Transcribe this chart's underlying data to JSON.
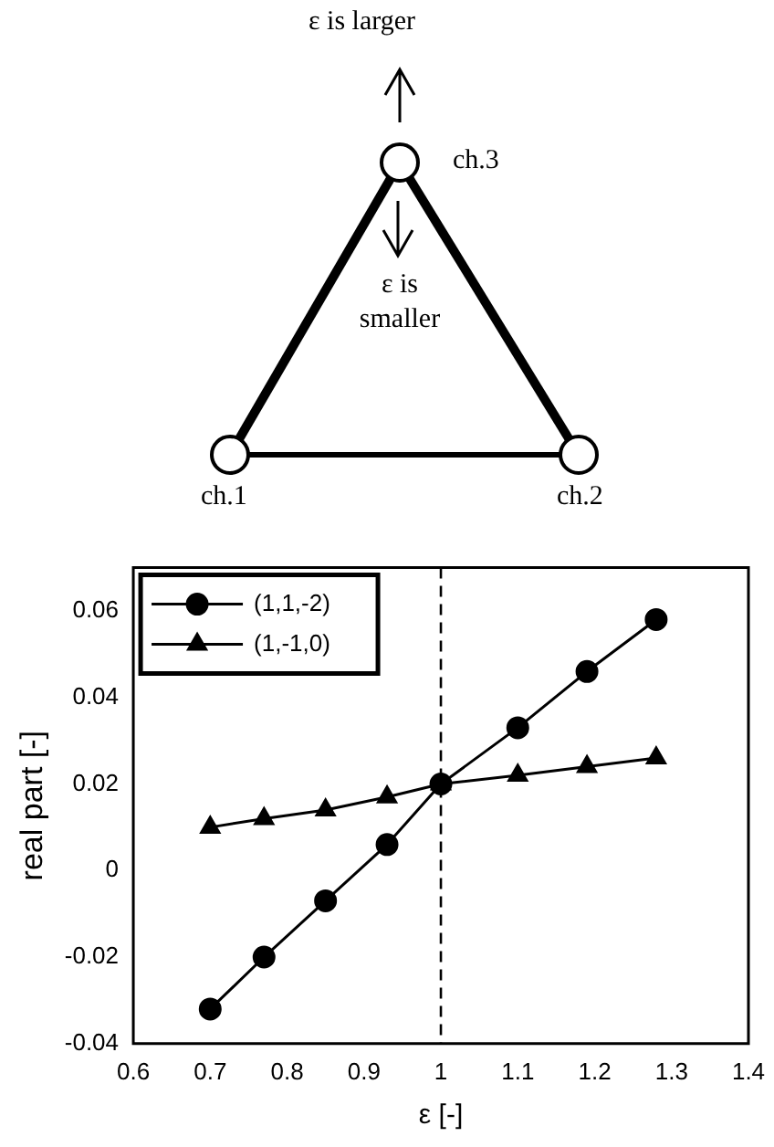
{
  "chart_data": {
    "type": "line",
    "xlabel": "ε [-]",
    "ylabel": "real part [-]",
    "annotations": [
      "ε is larger",
      "ε is smaller",
      "ch.1",
      "ch.2",
      "ch.3"
    ],
    "xlim": [
      0.6,
      1.4
    ],
    "xticks": [
      0.6,
      0.7,
      0.8,
      0.9,
      1,
      1.1,
      1.2,
      1.3,
      1.4
    ],
    "ylim": [
      -0.04,
      0.07
    ],
    "yticks": [
      -0.04,
      -0.02,
      0,
      0.02,
      0.04,
      0.06
    ],
    "grid": false,
    "legend": "top left",
    "ref_lines": [
      {
        "axis": "x",
        "value": 1,
        "line_style": "dashed",
        "color": "#000000"
      }
    ],
    "series": [
      {
        "name": "(1,1,-2)",
        "color": "#000000",
        "marker": "circle",
        "x": [
          0.7,
          0.77,
          0.85,
          0.93,
          1.0,
          1.1,
          1.19,
          1.28
        ],
        "values": [
          -0.032,
          -0.02,
          -0.007,
          0.006,
          0.02,
          0.033,
          0.046,
          0.058
        ]
      },
      {
        "name": "(1,-1,0)",
        "color": "#000000",
        "marker": "triangle",
        "x": [
          0.7,
          0.77,
          0.85,
          0.93,
          1.0,
          1.1,
          1.19,
          1.28
        ],
        "values": [
          0.01,
          0.012,
          0.014,
          0.017,
          0.02,
          0.022,
          0.024,
          0.026
        ]
      }
    ]
  }
}
